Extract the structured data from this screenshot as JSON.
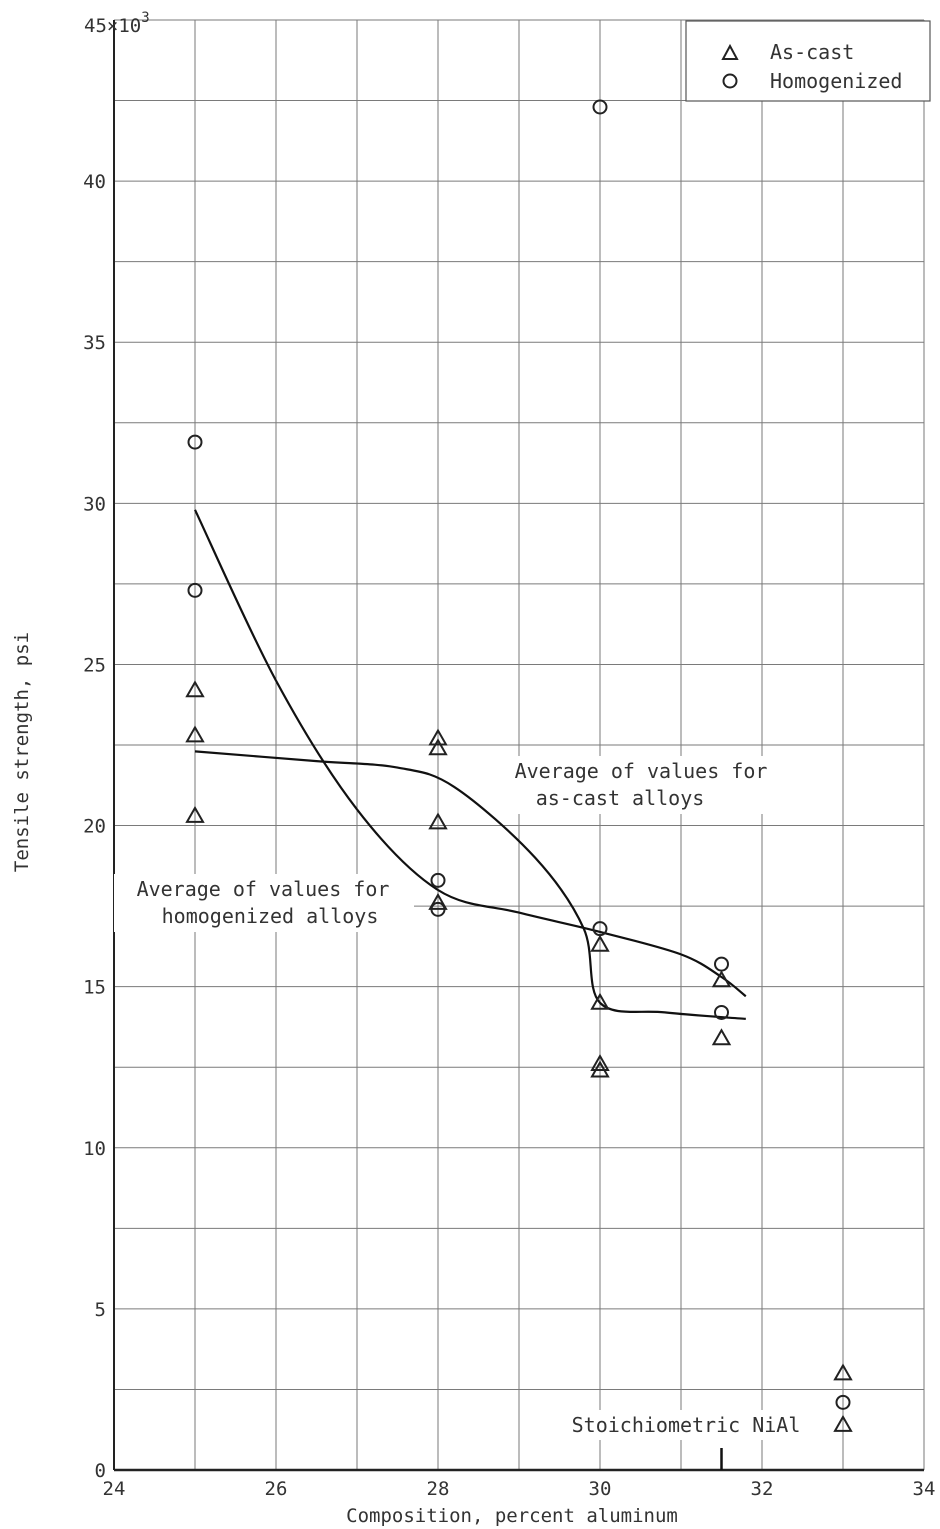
{
  "chart_data": {
    "type": "scatter",
    "xlabel": "Composition, percent aluminum",
    "ylabel": "Tensile strength, psi",
    "xlim": [
      24,
      34
    ],
    "ylim": [
      0,
      45000
    ],
    "x_ticks": [
      "24",
      "26",
      "28",
      "30",
      "32",
      "34"
    ],
    "y_ticks": [
      {
        "value": 0,
        "label": "0"
      },
      {
        "value": 5000,
        "label": "5"
      },
      {
        "value": 10000,
        "label": "10"
      },
      {
        "value": 15000,
        "label": "15"
      },
      {
        "value": 20000,
        "label": "20"
      },
      {
        "value": 25000,
        "label": "25"
      },
      {
        "value": 30000,
        "label": "30"
      },
      {
        "value": 35000,
        "label": "35"
      },
      {
        "value": 40000,
        "label": "40"
      }
    ],
    "y_top_label": "45×10",
    "y_top_label_exp": "3",
    "grid": true,
    "legend_position": "top-right",
    "series": [
      {
        "name": "As-cast",
        "marker": "triangle",
        "points": [
          [
            25,
            24200
          ],
          [
            25,
            22800
          ],
          [
            25,
            20300
          ],
          [
            28,
            22700
          ],
          [
            28,
            22400
          ],
          [
            28,
            20100
          ],
          [
            28,
            17600
          ],
          [
            30,
            16300
          ],
          [
            30,
            14500
          ],
          [
            30,
            12600
          ],
          [
            30,
            12400
          ],
          [
            31.5,
            15200
          ],
          [
            31.5,
            13400
          ],
          [
            33,
            3000
          ],
          [
            33,
            1400
          ]
        ]
      },
      {
        "name": "Homogenized",
        "marker": "circle",
        "points": [
          [
            25,
            31900
          ],
          [
            25,
            27300
          ],
          [
            28,
            18300
          ],
          [
            28,
            17400
          ],
          [
            30,
            42300
          ],
          [
            30,
            16800
          ],
          [
            31.5,
            15700
          ],
          [
            31.5,
            14200
          ],
          [
            33,
            2100
          ]
        ]
      }
    ],
    "curves": [
      {
        "points": [
          [
            25,
            22300
          ],
          [
            26.5,
            22000
          ],
          [
            27.5,
            21800
          ],
          [
            28.2,
            21200
          ],
          [
            29.2,
            19000
          ],
          [
            29.8,
            16800
          ],
          [
            30,
            14500
          ],
          [
            30.8,
            14200
          ],
          [
            31.8,
            14000
          ]
        ]
      },
      {
        "points": [
          [
            25,
            29800
          ],
          [
            26,
            24500
          ],
          [
            27,
            20500
          ],
          [
            28,
            18000
          ],
          [
            29,
            17300
          ],
          [
            30,
            16700
          ],
          [
            31,
            16000
          ],
          [
            31.5,
            15300
          ],
          [
            31.8,
            14700
          ]
        ]
      }
    ],
    "annotations": {
      "as_cast_line1": "Average of values for",
      "as_cast_line2": "as-cast alloys",
      "homog_line1": "Average of values for",
      "homog_line2": "homogenized alloys",
      "stoich": "Stoichiometric NiAl"
    },
    "stoich_marker_x": 31.5
  }
}
